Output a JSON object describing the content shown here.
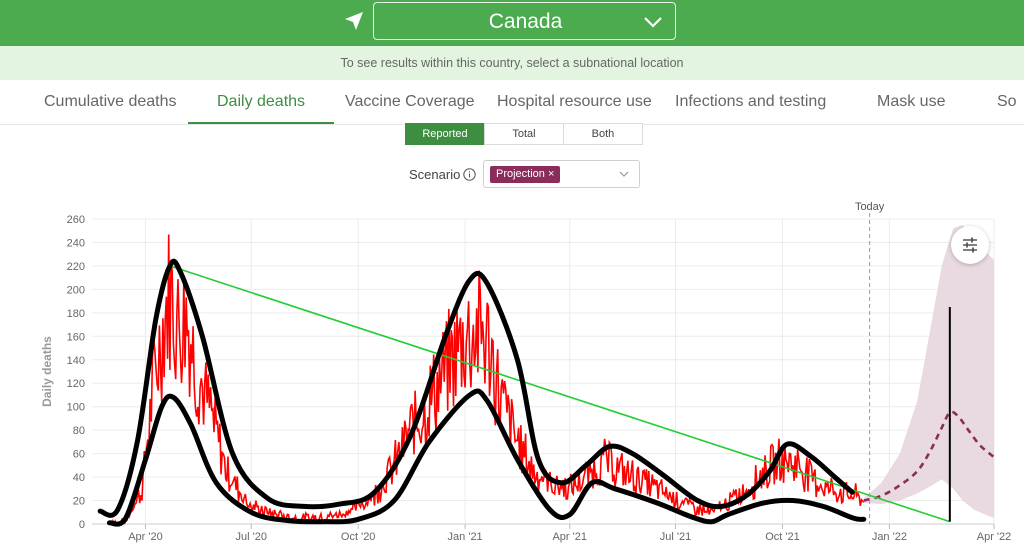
{
  "header": {
    "country": "Canada",
    "subnational_hint": "To see results within this country, select a subnational location"
  },
  "tabs": [
    {
      "label": "Cumulative deaths"
    },
    {
      "label": "Daily deaths"
    },
    {
      "label": "Vaccine Coverage"
    },
    {
      "label": "Hospital resource use"
    },
    {
      "label": "Infections and testing"
    },
    {
      "label": "Mask use"
    },
    {
      "label": "So"
    }
  ],
  "active_tab": "Daily deaths",
  "toggle": {
    "options": [
      "Reported",
      "Total",
      "Both"
    ],
    "selected": "Reported"
  },
  "scenario": {
    "label": "Scenario",
    "selected_tag": "Projection",
    "remove_glyph": "×"
  },
  "colors": {
    "brand_green": "#4caa4f",
    "reported": "#ff0000",
    "projection": "#8a2d5a",
    "band": "#e5d3dc"
  },
  "icons": [
    "location-arrow-icon",
    "chevron-down-icon",
    "info-icon",
    "settings-sliders-icon"
  ],
  "chart_data": {
    "type": "line",
    "ylabel": "Daily deaths",
    "ylim": [
      0,
      260
    ],
    "yticks": [
      0,
      20,
      40,
      60,
      80,
      100,
      120,
      140,
      160,
      180,
      200,
      220,
      240,
      260
    ],
    "xlim": [
      "2020-02-15",
      "2022-04-01"
    ],
    "xticks": [
      {
        "date": "2020-04-01",
        "label": "Apr '20"
      },
      {
        "date": "2020-07-01",
        "label": "Jul '20"
      },
      {
        "date": "2020-10-01",
        "label": "Oct '20"
      },
      {
        "date": "2021-01-01",
        "label": "Jan '21"
      },
      {
        "date": "2021-04-01",
        "label": "Apr '21"
      },
      {
        "date": "2021-07-01",
        "label": "Jul '21"
      },
      {
        "date": "2021-10-01",
        "label": "Oct '21"
      },
      {
        "date": "2022-01-01",
        "label": "Jan '22"
      },
      {
        "date": "2022-04-01",
        "label": "Apr '22"
      }
    ],
    "today": {
      "date": "2021-12-15",
      "label": "Today"
    },
    "grid": true,
    "reported_points": [
      [
        "2020-03-01",
        0
      ],
      [
        "2020-03-15",
        2
      ],
      [
        "2020-03-29",
        30
      ],
      [
        "2020-04-08",
        120
      ],
      [
        "2020-04-15",
        160
      ],
      [
        "2020-04-22",
        200
      ],
      [
        "2020-04-29",
        170
      ],
      [
        "2020-05-06",
        180
      ],
      [
        "2020-05-13",
        140
      ],
      [
        "2020-05-20",
        115
      ],
      [
        "2020-05-27",
        95
      ],
      [
        "2020-06-03",
        70
      ],
      [
        "2020-06-10",
        45
      ],
      [
        "2020-06-20",
        30
      ],
      [
        "2020-07-01",
        15
      ],
      [
        "2020-07-15",
        10
      ],
      [
        "2020-08-01",
        6
      ],
      [
        "2020-08-15",
        5
      ],
      [
        "2020-09-01",
        6
      ],
      [
        "2020-09-15",
        8
      ],
      [
        "2020-10-01",
        15
      ],
      [
        "2020-10-15",
        25
      ],
      [
        "2020-11-01",
        50
      ],
      [
        "2020-11-15",
        80
      ],
      [
        "2020-12-01",
        105
      ],
      [
        "2020-12-15",
        130
      ],
      [
        "2021-01-01",
        160
      ],
      [
        "2021-01-15",
        165
      ],
      [
        "2021-01-22",
        150
      ],
      [
        "2021-02-01",
        105
      ],
      [
        "2021-02-15",
        70
      ],
      [
        "2021-03-01",
        45
      ],
      [
        "2021-03-15",
        35
      ],
      [
        "2021-04-01",
        30
      ],
      [
        "2021-04-15",
        40
      ],
      [
        "2021-05-01",
        55
      ],
      [
        "2021-05-15",
        45
      ],
      [
        "2021-06-01",
        38
      ],
      [
        "2021-06-15",
        30
      ],
      [
        "2021-07-01",
        22
      ],
      [
        "2021-07-15",
        15
      ],
      [
        "2021-08-01",
        10
      ],
      [
        "2021-08-15",
        18
      ],
      [
        "2021-09-01",
        30
      ],
      [
        "2021-09-15",
        45
      ],
      [
        "2021-10-01",
        55
      ],
      [
        "2021-10-15",
        50
      ],
      [
        "2021-11-01",
        35
      ],
      [
        "2021-11-15",
        28
      ],
      [
        "2021-12-01",
        25
      ],
      [
        "2021-12-10",
        20
      ]
    ],
    "projection_mean": [
      [
        "2021-12-10",
        20
      ],
      [
        "2021-12-25",
        24
      ],
      [
        "2022-01-10",
        33
      ],
      [
        "2022-01-25",
        45
      ],
      [
        "2022-02-05",
        62
      ],
      [
        "2022-02-15",
        82
      ],
      [
        "2022-02-22",
        95
      ],
      [
        "2022-03-01",
        92
      ],
      [
        "2022-03-10",
        80
      ],
      [
        "2022-03-20",
        67
      ],
      [
        "2022-04-01",
        57
      ]
    ],
    "projection_upper": [
      [
        "2021-12-10",
        22
      ],
      [
        "2021-12-25",
        35
      ],
      [
        "2022-01-10",
        60
      ],
      [
        "2022-01-25",
        105
      ],
      [
        "2022-02-05",
        165
      ],
      [
        "2022-02-15",
        220
      ],
      [
        "2022-02-25",
        252
      ],
      [
        "2022-03-05",
        255
      ],
      [
        "2022-03-15",
        242
      ],
      [
        "2022-04-01",
        225
      ]
    ],
    "projection_lower": [
      [
        "2021-12-10",
        18
      ],
      [
        "2021-12-25",
        17
      ],
      [
        "2022-01-10",
        20
      ],
      [
        "2022-01-25",
        26
      ],
      [
        "2022-02-05",
        32
      ],
      [
        "2022-02-15",
        38
      ],
      [
        "2022-02-25",
        30
      ],
      [
        "2022-03-05",
        20
      ],
      [
        "2022-03-15",
        12
      ],
      [
        "2022-04-01",
        5
      ]
    ],
    "annotations": {
      "upper_envelope_black": [
        [
          "2020-02-22",
          11
        ],
        [
          "2020-03-08",
          12
        ],
        [
          "2020-03-25",
          70
        ],
        [
          "2020-04-10",
          175
        ],
        [
          "2020-04-22",
          220
        ],
        [
          "2020-05-01",
          215
        ],
        [
          "2020-05-20",
          160
        ],
        [
          "2020-06-15",
          60
        ],
        [
          "2020-07-15",
          22
        ],
        [
          "2020-08-15",
          15
        ],
        [
          "2020-09-15",
          17
        ],
        [
          "2020-10-15",
          27
        ],
        [
          "2020-11-15",
          75
        ],
        [
          "2020-12-15",
          160
        ],
        [
          "2021-01-05",
          208
        ],
        [
          "2021-01-20",
          205
        ],
        [
          "2021-02-15",
          140
        ],
        [
          "2021-03-05",
          55
        ],
        [
          "2021-03-25",
          35
        ],
        [
          "2021-04-15",
          50
        ],
        [
          "2021-05-05",
          66
        ],
        [
          "2021-05-25",
          60
        ],
        [
          "2021-06-20",
          42
        ],
        [
          "2021-07-20",
          20
        ],
        [
          "2021-08-10",
          15
        ],
        [
          "2021-09-01",
          25
        ],
        [
          "2021-09-20",
          45
        ],
        [
          "2021-10-05",
          68
        ],
        [
          "2021-10-25",
          58
        ],
        [
          "2021-11-15",
          40
        ],
        [
          "2021-11-30",
          27
        ]
      ],
      "lower_envelope_black": [
        [
          "2020-03-01",
          1
        ],
        [
          "2020-03-15",
          5
        ],
        [
          "2020-04-01",
          55
        ],
        [
          "2020-04-15",
          100
        ],
        [
          "2020-04-25",
          108
        ],
        [
          "2020-05-10",
          85
        ],
        [
          "2020-06-01",
          35
        ],
        [
          "2020-07-01",
          10
        ],
        [
          "2020-08-01",
          3
        ],
        [
          "2020-09-01",
          2
        ],
        [
          "2020-10-01",
          4
        ],
        [
          "2020-11-01",
          20
        ],
        [
          "2020-12-01",
          70
        ],
        [
          "2021-01-05",
          110
        ],
        [
          "2021-01-20",
          105
        ],
        [
          "2021-02-15",
          55
        ],
        [
          "2021-03-15",
          12
        ],
        [
          "2021-04-01",
          8
        ],
        [
          "2021-04-20",
          35
        ],
        [
          "2021-05-10",
          30
        ],
        [
          "2021-06-15",
          18
        ],
        [
          "2021-07-15",
          6
        ],
        [
          "2021-08-01",
          2
        ],
        [
          "2021-08-15",
          8
        ],
        [
          "2021-09-15",
          18
        ],
        [
          "2021-10-10",
          20
        ],
        [
          "2021-11-05",
          15
        ],
        [
          "2021-12-01",
          5
        ],
        [
          "2021-12-10",
          4
        ]
      ],
      "trend_line_green": [
        [
          "2020-04-22",
          220
        ],
        [
          "2022-02-22",
          2
        ]
      ],
      "vertical_marker_black": {
        "date": "2022-02-22",
        "from": 2,
        "to": 185
      }
    }
  }
}
